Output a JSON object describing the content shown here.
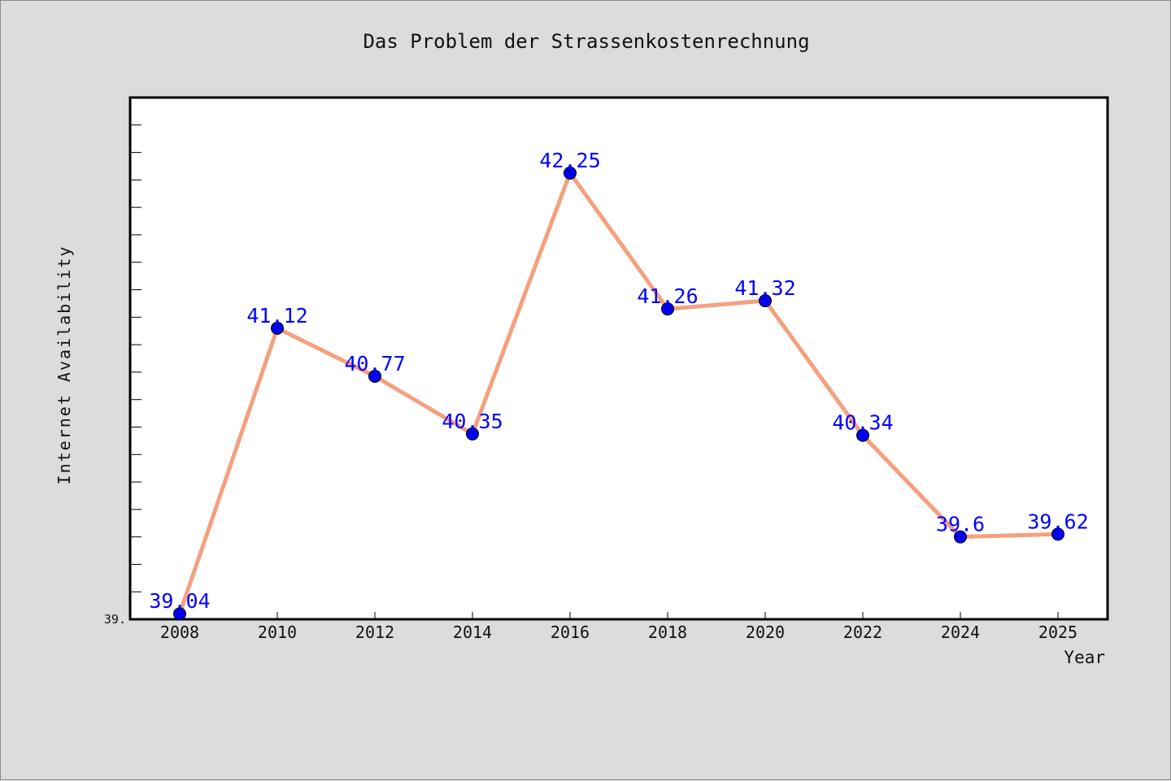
{
  "chart_data": {
    "type": "line",
    "title": "Das Problem der Strassenkostenrechnung",
    "xlabel": "Year",
    "ylabel": "Internet Availability",
    "categories": [
      "2008",
      "2010",
      "2012",
      "2014",
      "2016",
      "2018",
      "2020",
      "2022",
      "2024",
      "2025"
    ],
    "series": [
      {
        "values": [
          39.04,
          41.12,
          40.77,
          40.35,
          42.25,
          41.26,
          41.32,
          40.34,
          39.6,
          39.62
        ]
      }
    ],
    "data_labels": [
      "39.04",
      "41.12",
      "40.77",
      "40.35",
      "42.25",
      "41.26",
      "41.32",
      "40.34",
      "39.6",
      "39.62"
    ],
    "y_tick_label": "39.",
    "ylim": [
      39.0,
      42.8
    ],
    "grid": false,
    "colors": {
      "line": "#f4a07e",
      "marker": "#0000ee",
      "label": "#0000ff",
      "axes": "#000000",
      "plot_bg": "#ffffff"
    }
  }
}
